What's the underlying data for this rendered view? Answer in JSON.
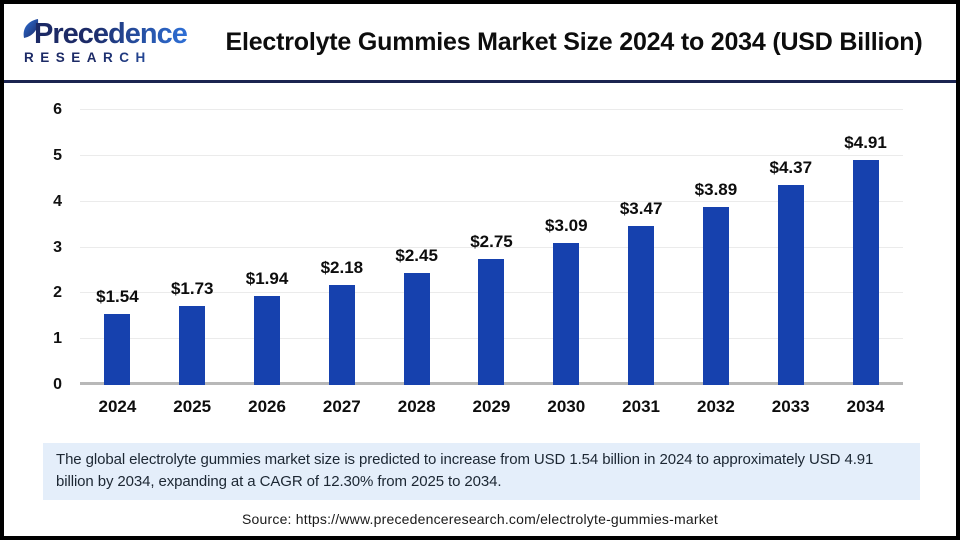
{
  "header": {
    "logo": {
      "line1": "Precedence",
      "line2": "RESEARCH"
    },
    "title": "Electrolyte Gummies Market Size 2024 to 2034 (USD Billion)"
  },
  "chart_data": {
    "type": "bar",
    "title": "Electrolyte Gummies Market Size 2024 to 2034 (USD Billion)",
    "categories": [
      "2024",
      "2025",
      "2026",
      "2027",
      "2028",
      "2029",
      "2030",
      "2031",
      "2032",
      "2033",
      "2034"
    ],
    "values": [
      1.54,
      1.73,
      1.94,
      2.18,
      2.45,
      2.75,
      3.09,
      3.47,
      3.89,
      4.37,
      4.91
    ],
    "value_labels": [
      "$1.54",
      "$1.73",
      "$1.94",
      "$2.18",
      "$2.45",
      "$2.75",
      "$3.09",
      "$3.47",
      "$3.89",
      "$4.37",
      "$4.91"
    ],
    "xlabel": "",
    "ylabel": "",
    "ylim": [
      0,
      6
    ],
    "yticks": [
      0,
      1,
      2,
      3,
      4,
      5,
      6
    ],
    "grid": true,
    "legend_position": "none",
    "bar_color": "#1641ae",
    "unit": "USD Billion"
  },
  "note": {
    "text": "The global electrolyte gummies market size is predicted to increase from USD 1.54 billion in 2024 to approximately USD 4.91 billion by 2034, expanding at a CAGR of 12.30% from 2025 to 2034."
  },
  "source": {
    "text": "Source: https://www.precedenceresearch.com/electrolyte-gummies-market"
  },
  "colors": {
    "bar": "#1641ae",
    "note_background": "#e4eefa",
    "header_rule": "#1b2450",
    "logo_dark": "#1c2a66",
    "logo_light": "#2e6fd6",
    "gridline": "#ebebeb",
    "axis_line": "#b8b8b8"
  }
}
